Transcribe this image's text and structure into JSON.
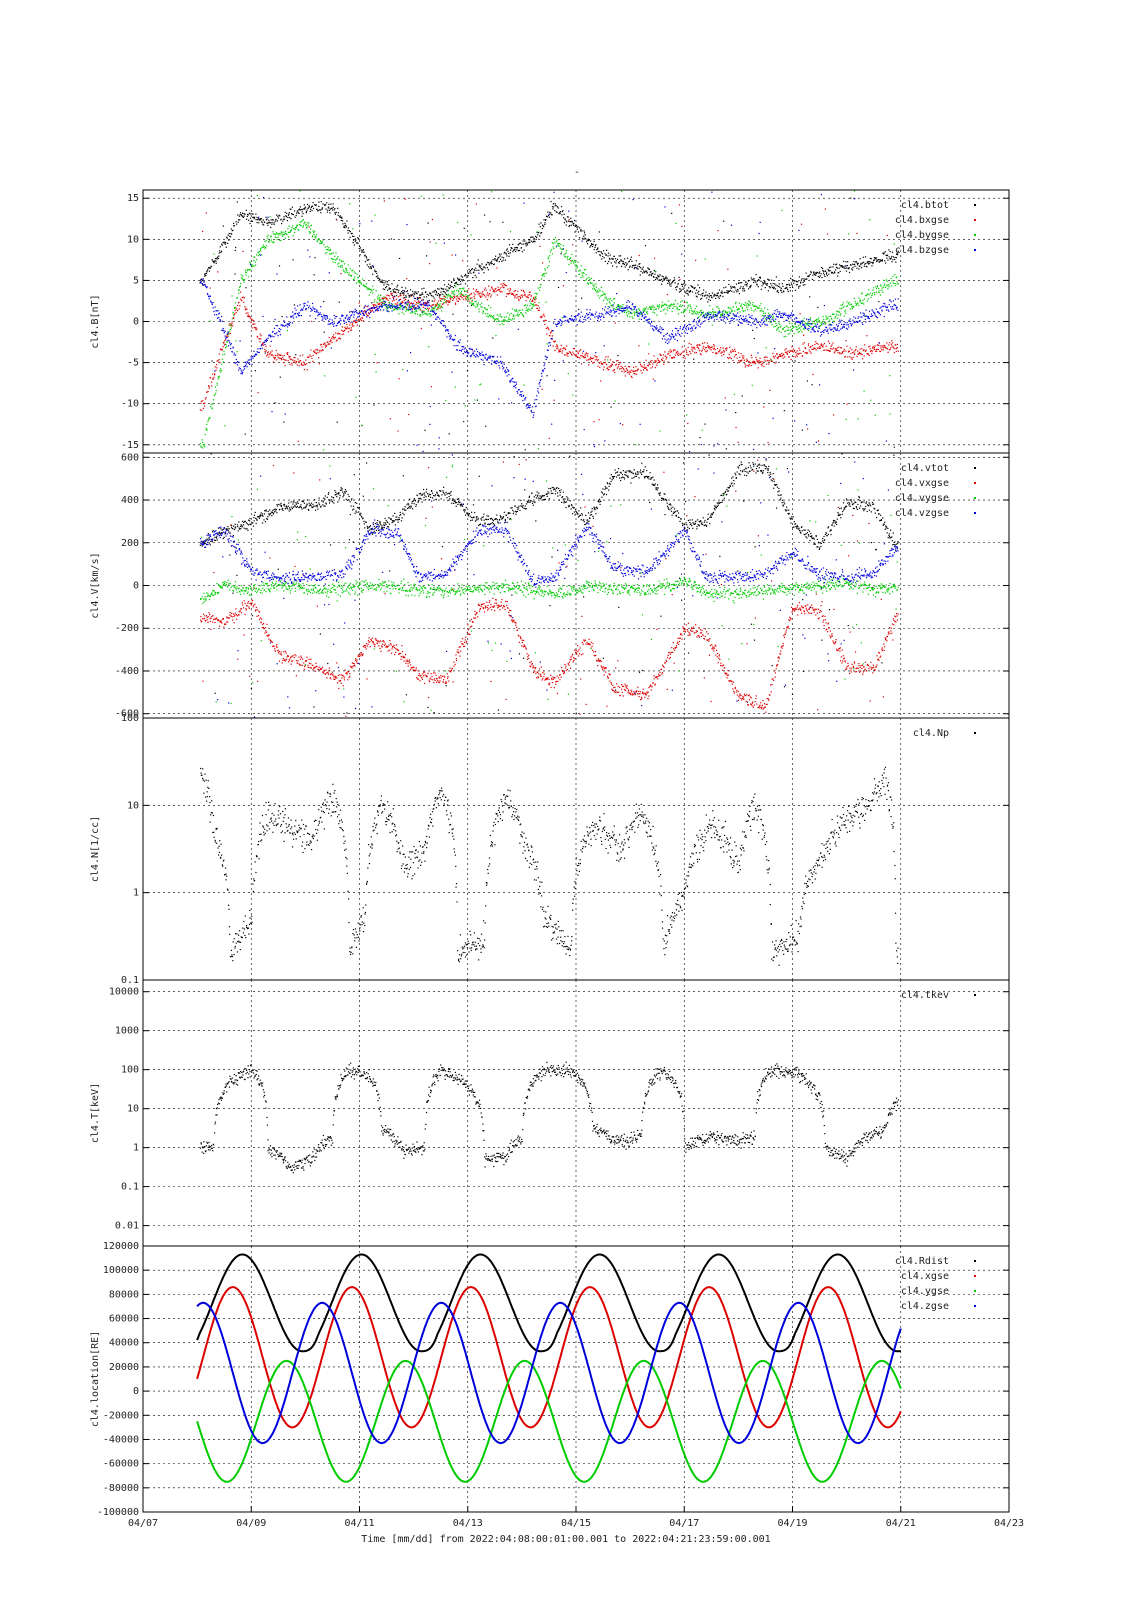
{
  "page_title": "-",
  "x_axis": {
    "ticks": [
      "04/07",
      "04/09",
      "04/11",
      "04/13",
      "04/15",
      "04/17",
      "04/19",
      "04/21",
      "04/23"
    ],
    "label": "Time [mm/dd]  from 2022:04:08:00:01:00.001  to  2022:04:21:23:59:00.001",
    "range_days": [
      0,
      16
    ]
  },
  "colors": {
    "black": "#000000",
    "red": "#dd0000",
    "green": "#00cc00",
    "blue": "#0000dd"
  },
  "chart_data": [
    {
      "type": "scatter",
      "ylabel": "cl4.B[nT]",
      "ylim": [
        -16,
        16
      ],
      "scale": "linear",
      "yticks": [
        -15,
        -10,
        -5,
        0,
        5,
        10,
        15
      ],
      "grid": true,
      "legend_position": "top-right",
      "series": [
        {
          "name": "cl4.btot",
          "color": "#000000",
          "x": [
            1.1,
            1.8,
            2.3,
            3.0,
            3.5,
            4.5,
            5.3,
            5.8,
            6.6,
            7.2,
            7.6,
            8.5,
            9.0,
            9.7,
            10.5,
            11.3,
            11.8,
            12.5,
            13.1,
            13.8
          ],
          "y": [
            5,
            13,
            12,
            14,
            14,
            4,
            3,
            5,
            8,
            10,
            14,
            8,
            7,
            5,
            3,
            5,
            4,
            6,
            7,
            8
          ]
        },
        {
          "name": "cl4.bxgse",
          "color": "#dd0000",
          "x": [
            1.1,
            1.8,
            2.3,
            3.0,
            3.5,
            4.5,
            5.3,
            5.8,
            6.6,
            7.2,
            7.6,
            8.5,
            9.0,
            9.7,
            10.5,
            11.3,
            11.8,
            12.5,
            13.1,
            13.8
          ],
          "y": [
            -10,
            3,
            -4,
            -5,
            -2,
            3,
            2,
            3,
            4,
            3,
            -3,
            -5,
            -6,
            -4,
            -3,
            -5,
            -4,
            -3,
            -4,
            -3
          ]
        },
        {
          "name": "cl4.bygse",
          "color": "#00cc00",
          "x": [
            1.1,
            1.8,
            2.3,
            3.0,
            3.5,
            4.5,
            5.3,
            5.8,
            6.6,
            7.2,
            7.6,
            8.5,
            9.0,
            9.7,
            10.5,
            11.3,
            11.8,
            12.5,
            13.1,
            13.8
          ],
          "y": [
            -15,
            5,
            10,
            12,
            8,
            2,
            1,
            4,
            0,
            2,
            10,
            3,
            1,
            2,
            1,
            2,
            -1,
            0,
            2,
            5
          ]
        },
        {
          "name": "cl4.bzgse",
          "color": "#0000dd",
          "x": [
            1.1,
            1.8,
            2.3,
            3.0,
            3.5,
            4.5,
            5.3,
            5.8,
            6.6,
            7.2,
            7.6,
            8.5,
            9.0,
            9.7,
            10.5,
            11.3,
            11.8,
            12.5,
            13.1,
            13.8
          ],
          "y": [
            5,
            -6,
            -2,
            2,
            0,
            2,
            2,
            -3,
            -5,
            -11,
            0,
            1,
            2,
            -2,
            1,
            0,
            1,
            -1,
            0,
            2
          ]
        }
      ]
    },
    {
      "type": "scatter",
      "ylabel": "cl4.V[km/s]",
      "ylim": [
        -620,
        620
      ],
      "scale": "linear",
      "yticks": [
        -600,
        -400,
        -200,
        0,
        200,
        400,
        600
      ],
      "grid": true,
      "legend_position": "top-right",
      "series": [
        {
          "name": "cl4.vtot",
          "color": "#000000",
          "x": [
            1.1,
            1.5,
            2.0,
            2.5,
            3.2,
            3.7,
            4.2,
            4.7,
            5.1,
            5.6,
            6.2,
            6.7,
            7.2,
            7.6,
            8.2,
            8.7,
            9.3,
            10.0,
            10.4,
            11.0,
            11.5,
            12.0,
            12.5,
            13.0,
            13.5,
            13.9
          ],
          "y": [
            200,
            250,
            300,
            370,
            380,
            440,
            260,
            320,
            420,
            430,
            300,
            320,
            410,
            450,
            300,
            520,
            520,
            280,
            300,
            540,
            560,
            300,
            190,
            390,
            370,
            190
          ]
        },
        {
          "name": "cl4.vxgse",
          "color": "#dd0000",
          "x": [
            1.1,
            1.5,
            2.0,
            2.5,
            3.2,
            3.7,
            4.2,
            4.7,
            5.1,
            5.6,
            6.2,
            6.7,
            7.2,
            7.6,
            8.2,
            8.7,
            9.3,
            10.0,
            10.4,
            11.0,
            11.5,
            12.0,
            12.5,
            13.0,
            13.5,
            13.9
          ],
          "y": [
            -150,
            -170,
            -80,
            -320,
            -380,
            -440,
            -250,
            -300,
            -420,
            -440,
            -100,
            -80,
            -400,
            -450,
            -250,
            -480,
            -510,
            -200,
            -230,
            -520,
            -560,
            -100,
            -120,
            -380,
            -390,
            -140
          ]
        },
        {
          "name": "cl4.vygse",
          "color": "#00cc00",
          "x": [
            1.1,
            1.5,
            2.0,
            2.5,
            3.2,
            3.7,
            4.2,
            4.7,
            5.1,
            5.6,
            6.2,
            6.7,
            7.2,
            7.6,
            8.2,
            8.7,
            9.3,
            10.0,
            10.4,
            11.0,
            11.5,
            12.0,
            12.5,
            13.0,
            13.5,
            13.9
          ],
          "y": [
            -60,
            0,
            -30,
            10,
            -20,
            -10,
            0,
            -10,
            -20,
            -30,
            -10,
            0,
            -20,
            -40,
            0,
            -10,
            -20,
            20,
            -30,
            -40,
            -20,
            -10,
            0,
            10,
            -20,
            0
          ]
        },
        {
          "name": "cl4.vzgse",
          "color": "#0000dd",
          "x": [
            1.1,
            1.5,
            2.0,
            2.5,
            3.2,
            3.7,
            4.2,
            4.7,
            5.1,
            5.6,
            6.2,
            6.7,
            7.2,
            7.6,
            8.2,
            8.7,
            9.3,
            10.0,
            10.4,
            11.0,
            11.5,
            12.0,
            12.5,
            13.0,
            13.5,
            13.9
          ],
          "y": [
            200,
            260,
            60,
            40,
            40,
            60,
            260,
            240,
            40,
            60,
            260,
            260,
            20,
            40,
            280,
            80,
            60,
            260,
            40,
            40,
            60,
            160,
            50,
            40,
            60,
            180
          ]
        }
      ]
    },
    {
      "type": "scatter",
      "ylabel": "cl4.N[1/cc]",
      "ylim": [
        0.1,
        100
      ],
      "scale": "log",
      "yticks": [
        0.1,
        1,
        10,
        100
      ],
      "grid": true,
      "legend_position": "top-right",
      "series": [
        {
          "name": "cl4.Np",
          "color": "#000000",
          "x": [
            1.1,
            1.3,
            1.6,
            2.0,
            2.3,
            2.7,
            3.1,
            3.5,
            3.8,
            4.1,
            4.4,
            4.8,
            5.2,
            5.5,
            5.8,
            6.3,
            6.7,
            7.0,
            7.4,
            7.9,
            8.3,
            8.8,
            9.2,
            9.6,
            10.0,
            10.5,
            11.0,
            11.3,
            11.6,
            12.1,
            12.6,
            13.0,
            13.4,
            13.7,
            13.9
          ],
          "y": [
            20,
            5,
            0.2,
            0.5,
            8,
            6,
            4,
            12,
            0.2,
            0.5,
            10,
            2,
            3,
            15,
            0.2,
            0.3,
            12,
            4,
            0.5,
            0.2,
            6,
            3,
            8,
            0.2,
            1,
            6,
            2,
            10,
            0.2,
            0.3,
            3,
            7,
            10,
            20,
            0.2
          ]
        }
      ]
    },
    {
      "type": "scatter",
      "ylabel": "cl4.T[keV]",
      "ylim": [
        0.003,
        20000
      ],
      "scale": "log",
      "yticks": [
        0.01,
        0.1,
        1,
        10,
        100,
        1000,
        10000
      ],
      "grid": true,
      "legend_position": "top-right",
      "series": [
        {
          "name": "cl4.tkev",
          "color": "#000000",
          "x": [
            1.1,
            1.3,
            1.6,
            2.0,
            2.3,
            2.7,
            3.1,
            3.5,
            3.8,
            4.1,
            4.4,
            4.8,
            5.2,
            5.5,
            5.8,
            6.3,
            6.7,
            7.0,
            7.4,
            7.9,
            8.3,
            8.8,
            9.2,
            9.6,
            10.0,
            10.5,
            11.0,
            11.3,
            11.6,
            12.1,
            12.6,
            13.0,
            13.4,
            13.7,
            13.9
          ],
          "y": [
            1,
            1.2,
            50,
            100,
            1,
            0.3,
            0.5,
            2,
            100,
            80,
            3,
            0.8,
            1,
            100,
            60,
            0.5,
            0.6,
            2,
            100,
            100,
            3,
            1.5,
            2,
            100,
            1,
            2,
            1.5,
            2,
            100,
            80,
            1,
            0.5,
            2,
            3,
            15
          ]
        }
      ]
    },
    {
      "type": "line",
      "ylabel": "cl4.location[RE]",
      "ylim": [
        -100000,
        120000
      ],
      "scale": "linear",
      "yticks": [
        -100000,
        -80000,
        -60000,
        -40000,
        -20000,
        0,
        20000,
        40000,
        60000,
        80000,
        100000,
        120000
      ],
      "ytick_labels": [
        "-100000",
        "-80000",
        "-60000",
        "-40000",
        "-20000",
        "0",
        "20000",
        "40000",
        "60000",
        "80000",
        "100000",
        "120000"
      ],
      "grid": true,
      "legend_position": "top-right",
      "series": [
        {
          "name": "cl4.Rdist",
          "color": "#000000",
          "kind": "rdist",
          "base": 73000,
          "amp": 40000,
          "min": 33000
        },
        {
          "name": "cl4.xgse",
          "color": "#dd0000",
          "kind": "wave",
          "base": 28000,
          "amp": 58000,
          "phase": 0.95
        },
        {
          "name": "cl4.ygse",
          "color": "#00cc00",
          "kind": "wave",
          "base": -25000,
          "amp": 50000,
          "phase": 0.5
        },
        {
          "name": "cl4.zgse",
          "color": "#0000dd",
          "kind": "wave",
          "base": 15000,
          "amp": 58000,
          "phase": 0.2
        }
      ],
      "period_days": 2.2,
      "x_start": 1.0,
      "x_end": 14.0
    }
  ]
}
